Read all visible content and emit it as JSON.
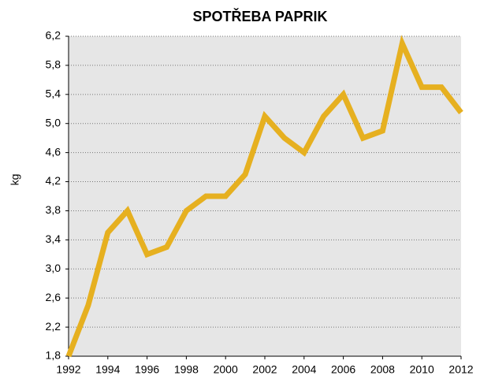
{
  "chart_data": {
    "type": "line",
    "title": "SPOTŘEBA PAPRIK",
    "y_label": "kg",
    "x": [
      1992,
      1993,
      1994,
      1995,
      1996,
      1997,
      1998,
      1999,
      2000,
      2001,
      2002,
      2003,
      2004,
      2005,
      2006,
      2007,
      2008,
      2009,
      2010,
      2011,
      2012
    ],
    "series": [
      {
        "name": "kg",
        "color": "#e6b020",
        "values": [
          1.8,
          2.5,
          3.5,
          3.8,
          3.2,
          3.3,
          3.8,
          4.0,
          4.0,
          4.3,
          5.1,
          4.8,
          4.6,
          5.1,
          5.4,
          4.8,
          4.9,
          6.1,
          5.5,
          5.5,
          5.15
        ]
      }
    ],
    "xlim": [
      1992,
      2012
    ],
    "xticks": [
      1992,
      1994,
      1996,
      1998,
      2000,
      2002,
      2004,
      2006,
      2008,
      2010,
      2012
    ],
    "ylim": [
      1.8,
      6.2
    ],
    "yticks": [
      {
        "value": 1.8,
        "label": "1,8"
      },
      {
        "value": 2.2,
        "label": "2,2"
      },
      {
        "value": 2.6,
        "label": "2,6"
      },
      {
        "value": 3.0,
        "label": "3,0"
      },
      {
        "value": 3.4,
        "label": "3,4"
      },
      {
        "value": 3.8,
        "label": "3,8"
      },
      {
        "value": 4.2,
        "label": "4,2"
      },
      {
        "value": 4.6,
        "label": "4,6"
      },
      {
        "value": 5.0,
        "label": "5,0"
      },
      {
        "value": 5.4,
        "label": "5,4"
      },
      {
        "value": 5.8,
        "label": "5,8"
      },
      {
        "value": 6.2,
        "label": "6,2"
      }
    ],
    "grid": true,
    "background": "#e6e6e6"
  }
}
